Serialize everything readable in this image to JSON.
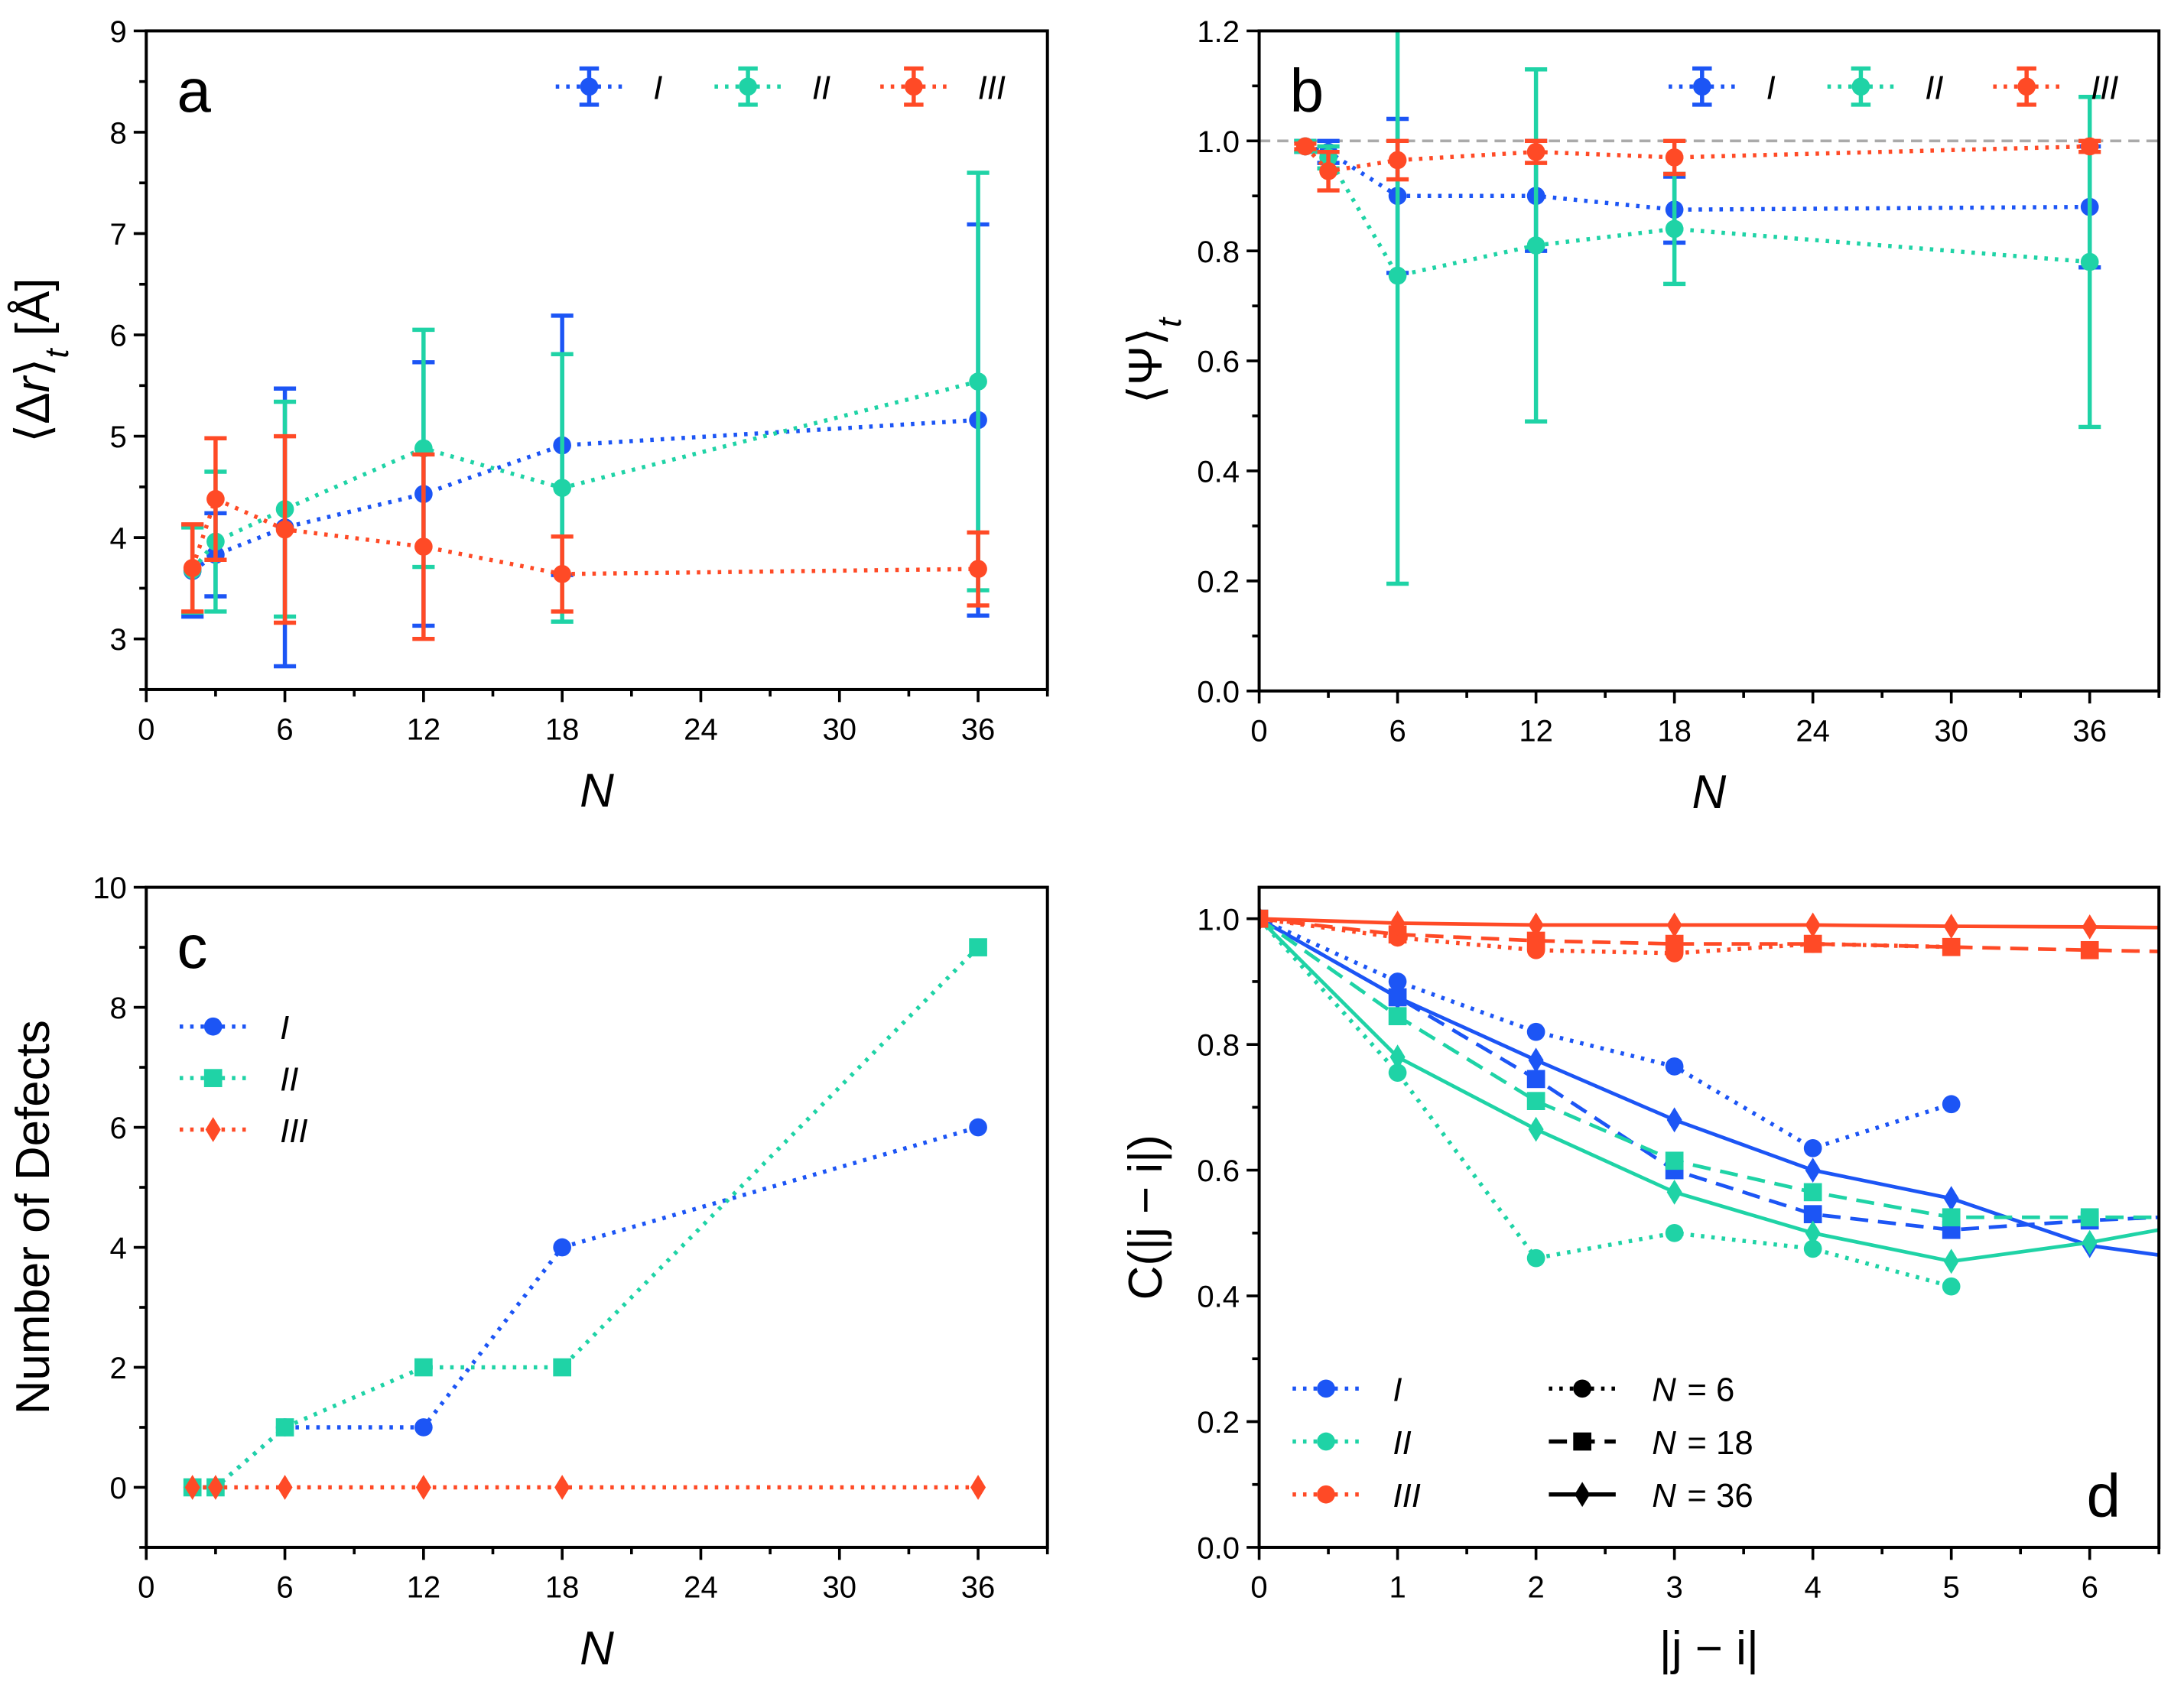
{
  "colors": {
    "I": "#1c55f5",
    "II": "#1fd3a6",
    "III": "#ff4a26",
    "ref_line": "#aaaaaa"
  },
  "chart_data": [
    {
      "panel_label": "a",
      "type": "line",
      "xlabel": "N",
      "ylabel_parts": [
        "⟨Δ",
        "r",
        "⟩",
        "t",
        " [Å]"
      ],
      "xlim": [
        0,
        39
      ],
      "ylim": [
        2.5,
        9
      ],
      "xticks": [
        0,
        6,
        12,
        18,
        24,
        30,
        36
      ],
      "xminor": 3,
      "yticks": [
        3,
        4,
        5,
        6,
        7,
        8,
        9
      ],
      "yminor": 0.5,
      "legend": "top-right",
      "series": [
        {
          "name": "I",
          "marker": "circle",
          "linestyle": "dotted",
          "x": [
            2,
            3,
            6,
            12,
            18,
            36
          ],
          "y": [
            3.67,
            3.83,
            4.1,
            4.43,
            4.91,
            5.16
          ],
          "yerr": [
            0.45,
            0.41,
            1.37,
            1.3,
            1.28,
            1.93
          ]
        },
        {
          "name": "II",
          "marker": "circle",
          "linestyle": "dotted",
          "x": [
            2,
            3,
            6,
            12,
            18,
            36
          ],
          "y": [
            3.68,
            3.96,
            4.28,
            4.88,
            4.49,
            5.54
          ],
          "yerr": [
            0.42,
            0.69,
            1.06,
            1.17,
            1.32,
            2.06
          ]
        },
        {
          "name": "III",
          "marker": "circle",
          "linestyle": "dotted",
          "x": [
            2,
            3,
            6,
            12,
            18,
            36
          ],
          "y": [
            3.7,
            4.38,
            4.08,
            3.91,
            3.64,
            3.69
          ],
          "yerr": [
            0.43,
            0.6,
            0.92,
            0.91,
            0.37,
            0.36
          ]
        }
      ]
    },
    {
      "panel_label": "b",
      "type": "line",
      "xlabel": "N",
      "ylabel_parts": [
        "⟨Ψ⟩",
        "t"
      ],
      "xlim": [
        0,
        39
      ],
      "ylim": [
        0,
        1.2
      ],
      "xticks": [
        0,
        6,
        12,
        18,
        24,
        30,
        36
      ],
      "xminor": 3,
      "yticks": [
        0.0,
        0.2,
        0.4,
        0.6,
        0.8,
        1.0,
        1.2
      ],
      "yminor": 0.1,
      "ytick_decimals": 1,
      "hline": 1.0,
      "legend": "top-right",
      "series": [
        {
          "name": "I",
          "marker": "circle",
          "linestyle": "dotted",
          "x": [
            2,
            3,
            6,
            12,
            18,
            36
          ],
          "y": [
            0.99,
            0.98,
            0.9,
            0.9,
            0.875,
            0.88
          ],
          "yerr": [
            0.01,
            0.02,
            0.14,
            0.1,
            0.06,
            0.11
          ]
        },
        {
          "name": "II",
          "marker": "circle",
          "linestyle": "dotted",
          "x": [
            2,
            3,
            6,
            12,
            18,
            36
          ],
          "y": [
            0.99,
            0.97,
            0.755,
            0.81,
            0.84,
            0.78
          ],
          "yerr": [
            0.01,
            0.02,
            0.56,
            0.32,
            0.1,
            0.3
          ]
        },
        {
          "name": "III",
          "marker": "circle",
          "linestyle": "dotted",
          "x": [
            2,
            3,
            6,
            12,
            18,
            36
          ],
          "y": [
            0.99,
            0.945,
            0.965,
            0.98,
            0.97,
            0.99
          ],
          "yerr": [
            0.005,
            0.035,
            0.035,
            0.02,
            0.03,
            0.01
          ]
        }
      ]
    },
    {
      "panel_label": "c",
      "type": "line",
      "xlabel": "N",
      "ylabel_parts": [
        "Number of Defects"
      ],
      "xlim": [
        0,
        39
      ],
      "ylim": [
        -1,
        10
      ],
      "xticks": [
        0,
        6,
        12,
        18,
        24,
        30,
        36
      ],
      "xminor": 3,
      "yticks": [
        0,
        2,
        4,
        6,
        8,
        10
      ],
      "yminor": 1,
      "legend": "upper-left",
      "series": [
        {
          "name": "I",
          "marker": "circle",
          "linestyle": "dotted",
          "x": [
            2,
            3,
            6,
            12,
            18,
            36
          ],
          "y": [
            0,
            0,
            1,
            1,
            4,
            6
          ]
        },
        {
          "name": "II",
          "marker": "square",
          "linestyle": "dotted",
          "x": [
            2,
            3,
            6,
            12,
            18,
            36
          ],
          "y": [
            0,
            0,
            1,
            2,
            2,
            9
          ]
        },
        {
          "name": "III",
          "marker": "diamond",
          "linestyle": "dotted",
          "x": [
            2,
            3,
            6,
            12,
            18,
            36
          ],
          "y": [
            0,
            0,
            0,
            0,
            0,
            0
          ]
        }
      ]
    },
    {
      "panel_label": "d",
      "type": "line",
      "xlabel": "|j − i|",
      "ylabel_parts": [
        "C(|j − i|)"
      ],
      "xlim": [
        0,
        6.5
      ],
      "ylim": [
        0,
        1.05
      ],
      "xticks": [
        0,
        1,
        2,
        3,
        4,
        5,
        6
      ],
      "xminor": 0.5,
      "yticks": [
        0.0,
        0.2,
        0.4,
        0.6,
        0.8,
        1.0
      ],
      "yminor": 0.1,
      "ytick_decimals": 1,
      "legend": "lower-left",
      "style_legend": [
        {
          "var": "N",
          "eq": "= 6",
          "marker": "circle",
          "linestyle": "dotted"
        },
        {
          "var": "N",
          "eq": "= 18",
          "marker": "square",
          "linestyle": "dashed"
        },
        {
          "var": "N",
          "eq": "= 36",
          "marker": "diamond",
          "linestyle": "solid"
        }
      ],
      "series": [
        {
          "name": "I",
          "N": 6,
          "marker": "circle",
          "linestyle": "dotted",
          "x": [
            0,
            1,
            2,
            3,
            4,
            5
          ],
          "y": [
            1.0,
            0.9,
            0.82,
            0.765,
            0.635,
            0.705
          ]
        },
        {
          "name": "I",
          "N": 18,
          "marker": "square",
          "linestyle": "dashed",
          "x": [
            0,
            1,
            2,
            3,
            4,
            5,
            6,
            6.5
          ],
          "y": [
            1.0,
            0.875,
            0.745,
            0.6,
            0.53,
            0.505,
            0.52,
            0.525
          ]
        },
        {
          "name": "I",
          "N": 36,
          "marker": "diamond",
          "linestyle": "solid",
          "x": [
            0,
            1,
            2,
            3,
            4,
            5,
            6,
            6.5
          ],
          "y": [
            1.0,
            0.875,
            0.775,
            0.68,
            0.6,
            0.555,
            0.48,
            0.465
          ]
        },
        {
          "name": "II",
          "N": 6,
          "marker": "circle",
          "linestyle": "dotted",
          "x": [
            0,
            1,
            2,
            3,
            4,
            5
          ],
          "y": [
            1.0,
            0.755,
            0.46,
            0.5,
            0.475,
            0.415
          ]
        },
        {
          "name": "II",
          "N": 18,
          "marker": "square",
          "linestyle": "dashed",
          "x": [
            0,
            1,
            2,
            3,
            4,
            5,
            6,
            6.5
          ],
          "y": [
            1.0,
            0.845,
            0.71,
            0.615,
            0.565,
            0.525,
            0.525,
            0.525
          ]
        },
        {
          "name": "II",
          "N": 36,
          "marker": "diamond",
          "linestyle": "solid",
          "x": [
            0,
            1,
            2,
            3,
            4,
            5,
            6,
            6.5
          ],
          "y": [
            1.0,
            0.78,
            0.665,
            0.565,
            0.5,
            0.455,
            0.485,
            0.505
          ]
        },
        {
          "name": "III",
          "N": 6,
          "marker": "circle",
          "linestyle": "dotted",
          "x": [
            0,
            1,
            2,
            3,
            4,
            5
          ],
          "y": [
            1.0,
            0.97,
            0.95,
            0.945,
            0.96,
            0.955
          ]
        },
        {
          "name": "III",
          "N": 18,
          "marker": "square",
          "linestyle": "dashed",
          "x": [
            0,
            1,
            2,
            3,
            4,
            5,
            6,
            6.5
          ],
          "y": [
            1.0,
            0.975,
            0.965,
            0.96,
            0.96,
            0.955,
            0.95,
            0.948
          ]
        },
        {
          "name": "III",
          "N": 36,
          "marker": "diamond",
          "linestyle": "solid",
          "x": [
            0,
            1,
            2,
            3,
            4,
            5,
            6,
            6.5
          ],
          "y": [
            1.0,
            0.993,
            0.99,
            0.99,
            0.99,
            0.988,
            0.987,
            0.986
          ]
        }
      ]
    }
  ]
}
